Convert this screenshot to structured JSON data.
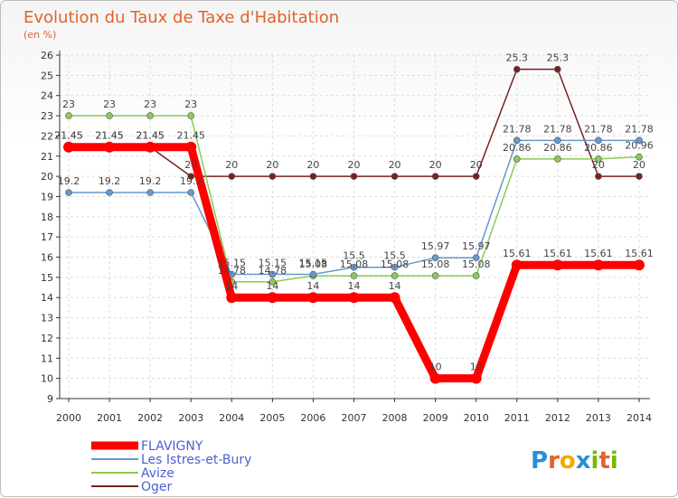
{
  "chart_data": {
    "type": "line",
    "title": "Evolution du Taux de Taxe d'Habitation",
    "ylabel": "(en %)",
    "xlabel": "",
    "x": [
      "2000",
      "2001",
      "2002",
      "2003",
      "2004",
      "2005",
      "2006",
      "2007",
      "2008",
      "2009",
      "2010",
      "2011",
      "2012",
      "2013",
      "2014"
    ],
    "ylim": [
      9,
      26
    ],
    "yticks": [
      9,
      10,
      11,
      12,
      13,
      14,
      15,
      16,
      17,
      18,
      19,
      20,
      21,
      22,
      23,
      24,
      25,
      26
    ],
    "grid": true,
    "legend_position": "bottom-left",
    "series": [
      {
        "name": "FLAVIGNY",
        "color": "#ff0000",
        "values": [
          21.45,
          21.45,
          21.45,
          21.45,
          14,
          14,
          14,
          14,
          14,
          10,
          10,
          15.61,
          15.61,
          15.61,
          15.61
        ],
        "labels": [
          "21.45",
          "21.45",
          "21.45",
          "21.45",
          "14",
          "14",
          "14",
          "14",
          "14",
          "10",
          "10",
          "15.61",
          "15.61",
          "15.61",
          "15.61"
        ]
      },
      {
        "name": "Les Istres-et-Bury",
        "color": "#6699cc",
        "values": [
          19.2,
          19.2,
          19.2,
          19.2,
          15.15,
          15.15,
          15.15,
          15.5,
          15.5,
          15.97,
          15.97,
          21.78,
          21.78,
          21.78,
          21.78
        ],
        "labels": [
          "19.2",
          "19.2",
          "19.2",
          "19.2",
          "15.15",
          "15.15",
          "15.15",
          "15.5",
          "15.5",
          "15.97",
          "15.97",
          "21.78",
          "21.78",
          "21.78",
          "21.78"
        ]
      },
      {
        "name": "Avize",
        "color": "#88cc55",
        "values": [
          23,
          23,
          23,
          23,
          14.78,
          14.78,
          15.08,
          15.08,
          15.08,
          15.08,
          15.08,
          20.86,
          20.86,
          20.86,
          20.96
        ],
        "labels": [
          "23",
          "23",
          "23",
          "23",
          "14.78",
          "14.78",
          "15.08",
          "15.08",
          "15.08",
          "15.08",
          "15.08",
          "20.86",
          "20.86",
          "20.86",
          "20.96"
        ]
      },
      {
        "name": "Oger",
        "color": "#772222",
        "values": [
          21.45,
          21.45,
          21.45,
          20,
          20,
          20,
          20,
          20,
          20,
          20,
          20,
          25.3,
          25.3,
          20,
          20
        ],
        "labels": [
          "21.45",
          "21.45",
          "21.45",
          "20",
          "20",
          "20",
          "20",
          "20",
          "20",
          "20",
          "20",
          "25.3",
          "25.3",
          "20",
          "20"
        ]
      }
    ]
  },
  "logo": {
    "letters": [
      "P",
      "r",
      "o",
      "x",
      "i",
      "t",
      "i"
    ],
    "colors": [
      "#2a8fd8",
      "#e0632a",
      "#f2a900",
      "#2a8fd8",
      "#7ab800",
      "#e0632a",
      "#7ab800"
    ]
  }
}
